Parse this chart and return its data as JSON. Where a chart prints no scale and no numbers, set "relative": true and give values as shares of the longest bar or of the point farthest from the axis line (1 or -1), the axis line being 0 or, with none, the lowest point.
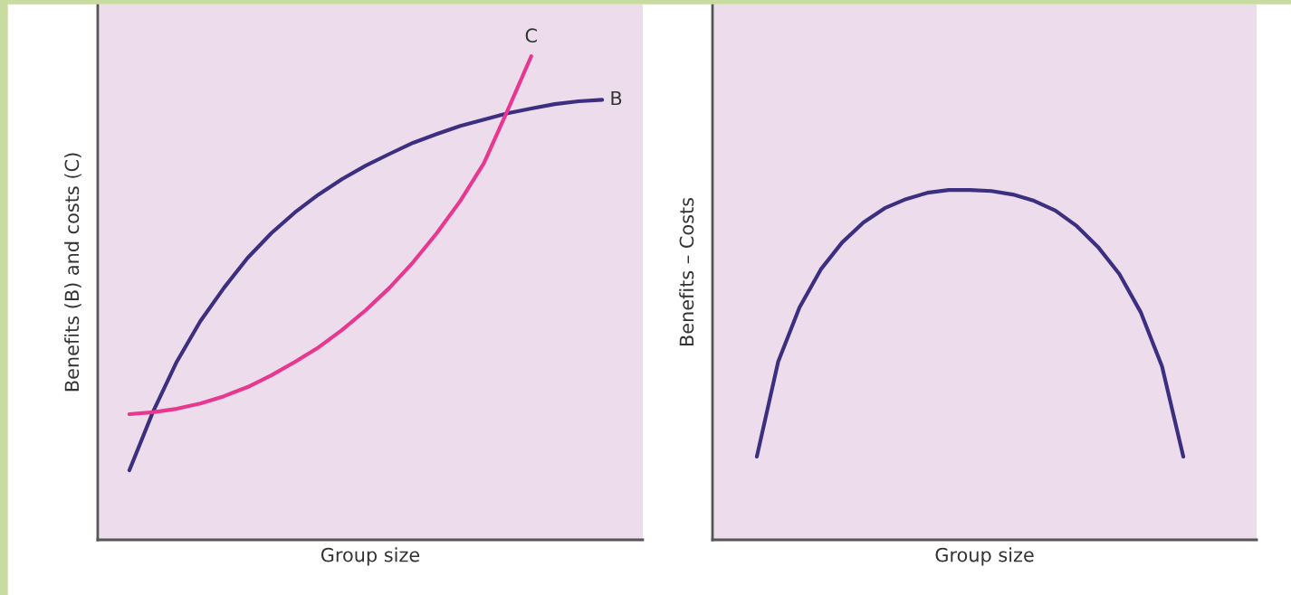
{
  "chart_data": [
    {
      "type": "line",
      "relative": true,
      "tick_labels": false,
      "xlabel": "Group size",
      "ylabel": "Benefits (B) and costs (C)",
      "categories": [
        null,
        null,
        null,
        null,
        null,
        null,
        null,
        null,
        null,
        null,
        null,
        null,
        null,
        null,
        null,
        null,
        null,
        null,
        null,
        null,
        null
      ],
      "series": [
        {
          "name": "B",
          "color": "#3d2f7f",
          "values": [
            0.144,
            0.265,
            0.368,
            0.452,
            0.521,
            0.583,
            0.634,
            0.677,
            0.714,
            0.746,
            0.774,
            0.798,
            0.821,
            0.839,
            0.856,
            0.869,
            0.882,
            0.892,
            0.901,
            0.907,
            0.91
          ]
        },
        {
          "name": "C",
          "color": "#e8378e",
          "values": [
            0.26,
            0.264,
            0.271,
            0.282,
            0.297,
            0.316,
            0.34,
            0.368,
            0.398,
            0.434,
            0.475,
            0.521,
            0.574,
            0.634,
            0.701,
            0.779,
            0.888,
            1.0,
            null,
            null,
            null
          ]
        }
      ]
    },
    {
      "type": "line",
      "relative": true,
      "tick_labels": false,
      "xlabel": "Group size",
      "ylabel": "Benefits – Costs",
      "categories": [
        null,
        null,
        null,
        null,
        null,
        null,
        null,
        null,
        null,
        null,
        null,
        null,
        null,
        null,
        null,
        null,
        null,
        null,
        null,
        null,
        null
      ],
      "series": [
        {
          "color": "#3d2f7f",
          "values": [
            0.238,
            0.509,
            0.664,
            0.773,
            0.85,
            0.907,
            0.948,
            0.974,
            0.992,
            1.0,
            1.0,
            0.997,
            0.987,
            0.969,
            0.941,
            0.897,
            0.837,
            0.76,
            0.651,
            0.496,
            0.238
          ]
        }
      ]
    }
  ]
}
